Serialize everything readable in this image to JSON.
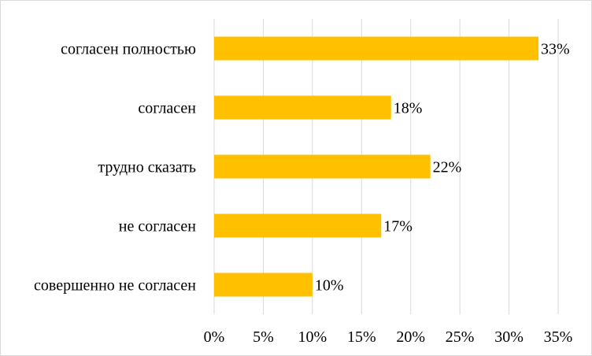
{
  "chart_data": {
    "type": "bar",
    "orientation": "horizontal",
    "categories": [
      "согласен полностью",
      "согласен",
      "трудно сказать",
      "не согласен",
      "совершенно не согласен"
    ],
    "values": [
      33,
      18,
      22,
      17,
      10
    ],
    "value_labels": [
      "33%",
      "18%",
      "22%",
      "17%",
      "10%"
    ],
    "xlim": [
      0,
      35
    ],
    "x_ticks": [
      0,
      5,
      10,
      15,
      20,
      25,
      30,
      35
    ],
    "x_tick_labels": [
      "0%",
      "5%",
      "10%",
      "15%",
      "20%",
      "25%",
      "30%",
      "35%"
    ],
    "title": "",
    "xlabel": "",
    "ylabel": "",
    "grid": "vertical",
    "legend": "none",
    "bar_color": "#FFC000",
    "grid_color": "#d9d9d9"
  }
}
